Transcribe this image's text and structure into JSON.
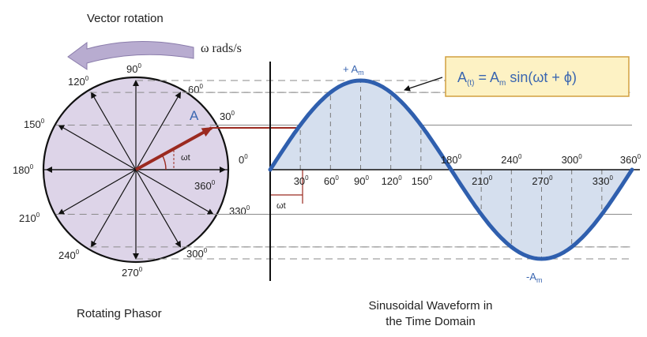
{
  "diagram": {
    "vector_rotation_label": "Vector rotation",
    "omega_label": "ω rads/s",
    "phasor_letter": "A",
    "omega_t": "ωt",
    "degree_sign": "0",
    "angle_labels": [
      {
        "v": "90"
      },
      {
        "v": "60"
      },
      {
        "v": "120"
      },
      {
        "v": "30"
      },
      {
        "v": "150"
      },
      {
        "v": "0"
      },
      {
        "v": "180"
      },
      {
        "v": "360"
      },
      {
        "v": "210"
      },
      {
        "v": "330"
      },
      {
        "v": "240"
      },
      {
        "v": "300"
      },
      {
        "v": "270"
      }
    ],
    "formula": {
      "A": "A",
      "sub_t": "(t)",
      "eq": " = A",
      "sub_m": "m",
      "rest": " sin(ωt + ϕ)"
    },
    "peak_pos": {
      "sign": "+ A",
      "sub": "m"
    },
    "peak_neg": {
      "sign": "-A",
      "sub": "m"
    },
    "x_labels_bottom": [
      {
        "v": "30"
      },
      {
        "v": "60"
      },
      {
        "v": "90"
      },
      {
        "v": "120"
      },
      {
        "v": "150"
      },
      {
        "v": "210"
      },
      {
        "v": "270"
      },
      {
        "v": "330"
      }
    ],
    "x_labels_top": [
      {
        "v": "180"
      },
      {
        "v": "240"
      },
      {
        "v": "300"
      },
      {
        "v": "360"
      }
    ],
    "zero_label": "0",
    "caption_left": "Rotating Phasor",
    "caption_right_line1": "Sinusoidal Waveform in",
    "caption_right_line2": "the Time Domain",
    "colors": {
      "wave": "#2f5fae",
      "phasor": "#9b2a20",
      "circle_fill": "#ddd4e8",
      "wave_fill": "#d5dfee",
      "formula_bg": "#fdf2c4",
      "formula_border": "#d2a040",
      "arrow_fill": "#b8acd0"
    }
  }
}
